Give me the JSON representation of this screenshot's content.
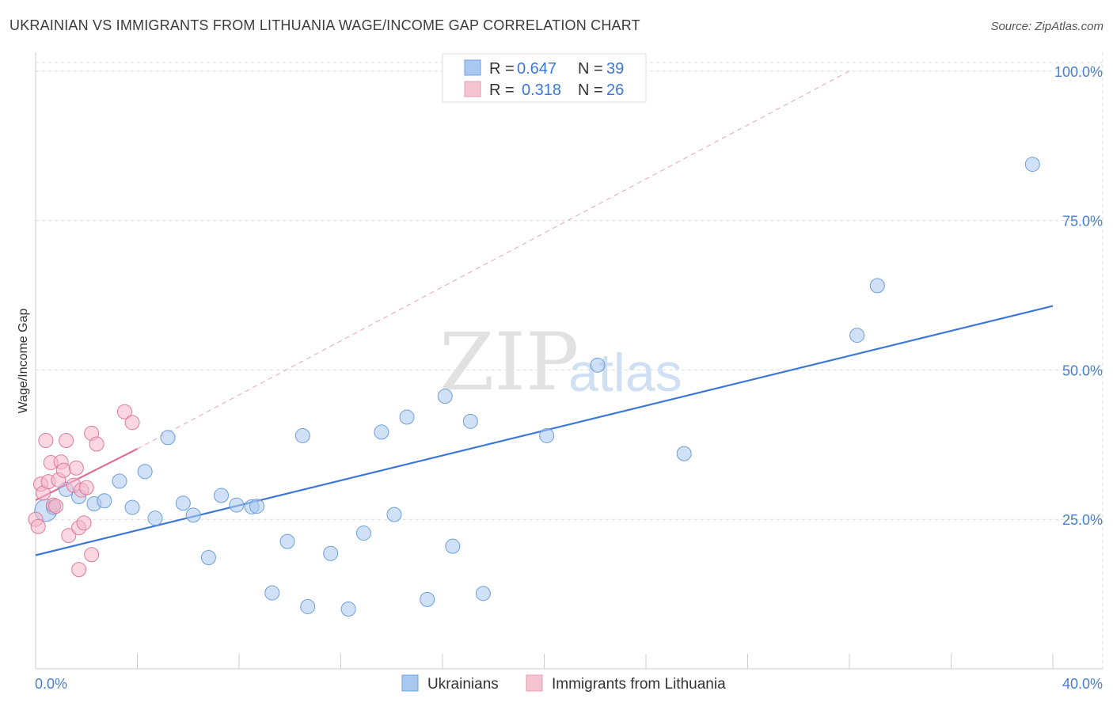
{
  "header": {
    "title": "UKRAINIAN VS IMMIGRANTS FROM LITHUANIA WAGE/INCOME GAP CORRELATION CHART",
    "source": "Source: ZipAtlas.com"
  },
  "watermark": {
    "zip": "ZIP",
    "atlas": "atlas"
  },
  "legend": {
    "rows": [
      {
        "r_label": "R =",
        "r_value": "0.647",
        "n_label": "N =",
        "n_value": "39",
        "color": "#a9c8f0"
      },
      {
        "r_label": "R =",
        "r_value": "0.318",
        "n_label": "N =",
        "n_value": "26",
        "color": "#f5b7c9"
      }
    ]
  },
  "chart_data": {
    "type": "scatter",
    "title": "UKRAINIAN VS IMMIGRANTS FROM LITHUANIA WAGE/INCOME GAP CORRELATION CHART",
    "xlabel": "",
    "ylabel": "Wage/Income Gap",
    "xlim": [
      0,
      40
    ],
    "ylim": [
      0,
      105
    ],
    "x_tick_labels": [
      "0.0%",
      "40.0%"
    ],
    "y_ticks": [
      25,
      50,
      75,
      100
    ],
    "y_tick_labels": [
      "25.0%",
      "50.0%",
      "75.0%",
      "100.0%"
    ],
    "grid": true,
    "legend_position": "top-center",
    "series": [
      {
        "name": "Ukrainians",
        "color": "#a9c8f0",
        "stroke": "#6e9fd8",
        "points": [
          [
            0.4,
            26.5
          ],
          [
            0.7,
            27.0
          ],
          [
            1.2,
            30.0
          ],
          [
            1.7,
            28.8
          ],
          [
            2.3,
            27.6
          ],
          [
            2.7,
            28.1
          ],
          [
            3.3,
            31.4
          ],
          [
            3.8,
            27.0
          ],
          [
            4.3,
            33.0
          ],
          [
            4.7,
            25.2
          ],
          [
            5.2,
            38.7
          ],
          [
            5.8,
            27.7
          ],
          [
            6.2,
            25.7
          ],
          [
            6.8,
            18.6
          ],
          [
            7.3,
            29.0
          ],
          [
            7.9,
            27.4
          ],
          [
            8.5,
            27.1
          ],
          [
            8.7,
            27.2
          ],
          [
            9.3,
            12.7
          ],
          [
            9.9,
            21.3
          ],
          [
            10.5,
            39.0
          ],
          [
            10.7,
            10.4
          ],
          [
            11.6,
            19.3
          ],
          [
            12.3,
            10.0
          ],
          [
            12.9,
            22.7
          ],
          [
            13.6,
            39.6
          ],
          [
            14.1,
            25.8
          ],
          [
            14.6,
            42.1
          ],
          [
            15.4,
            11.6
          ],
          [
            16.1,
            45.6
          ],
          [
            16.4,
            20.5
          ],
          [
            17.1,
            41.4
          ],
          [
            17.6,
            12.6
          ],
          [
            20.1,
            39.0
          ],
          [
            22.1,
            50.8
          ],
          [
            25.5,
            36.0
          ],
          [
            32.3,
            55.8
          ],
          [
            33.1,
            64.1
          ],
          [
            39.2,
            84.4
          ]
        ]
      },
      {
        "name": "Immigrants from Lithuania",
        "color": "#f5b7c9",
        "stroke": "#e07a9a",
        "points": [
          [
            0.0,
            25.0
          ],
          [
            0.1,
            23.8
          ],
          [
            0.2,
            30.9
          ],
          [
            0.3,
            29.4
          ],
          [
            0.4,
            38.2
          ],
          [
            0.5,
            31.3
          ],
          [
            0.6,
            34.5
          ],
          [
            0.7,
            27.4
          ],
          [
            0.8,
            27.2
          ],
          [
            0.9,
            31.6
          ],
          [
            1.0,
            34.6
          ],
          [
            1.1,
            33.2
          ],
          [
            1.2,
            38.2
          ],
          [
            1.3,
            22.3
          ],
          [
            1.5,
            30.7
          ],
          [
            1.6,
            33.6
          ],
          [
            1.7,
            23.6
          ],
          [
            1.7,
            16.6
          ],
          [
            1.8,
            29.9
          ],
          [
            1.9,
            24.4
          ],
          [
            2.0,
            30.3
          ],
          [
            2.2,
            19.1
          ],
          [
            2.2,
            39.4
          ],
          [
            2.4,
            37.6
          ],
          [
            3.5,
            43.0
          ],
          [
            3.8,
            41.2
          ]
        ]
      }
    ],
    "trendlines": [
      {
        "series": "Ukrainians",
        "color": "#3b78d8",
        "from": [
          0,
          19.0
        ],
        "to": [
          40,
          60.7
        ],
        "style": "solid"
      },
      {
        "series": "Immigrants from Lithuania",
        "color": "#e06b95",
        "from": [
          0,
          28.2
        ],
        "to": [
          4.0,
          36.8
        ],
        "style": "solid"
      },
      {
        "series": "Immigrants from Lithuania",
        "color": "#e8a2b8",
        "from": [
          4.0,
          36.8
        ],
        "to": [
          32.0,
          100.0
        ],
        "style": "dashed"
      }
    ]
  }
}
